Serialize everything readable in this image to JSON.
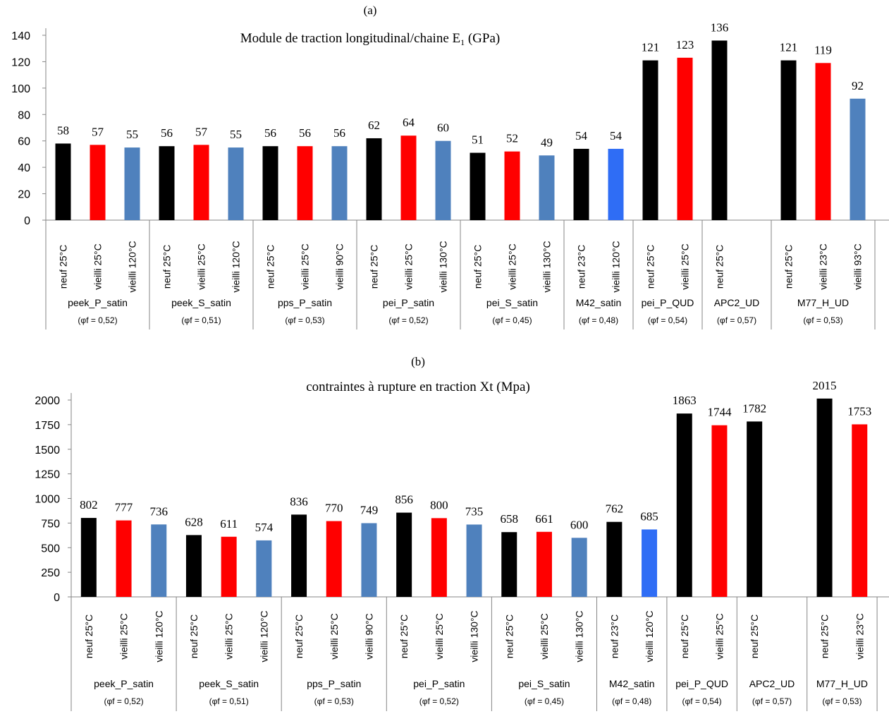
{
  "chart_data": [
    {
      "type": "bar",
      "panel_label": "(a)",
      "title": "Module de traction longitudinal/chaine E",
      "title_subscript": "1",
      "title_suffix": " (GPa)",
      "ylim": [
        0,
        140
      ],
      "yticks": [
        "0",
        "20",
        "40",
        "60",
        "80",
        "100",
        "120",
        "140"
      ],
      "groups": [
        {
          "name": "peek_P_satin",
          "sub": "(φf = 0,52)",
          "bars": [
            {
              "label": "neuf 25°C",
              "value": 58,
              "color": "#000000"
            },
            {
              "label": "vieilli 25°C",
              "value": 57,
              "color": "#ff0000"
            },
            {
              "label": "vieilli 120°C",
              "value": 55,
              "color": "#4f81bd"
            }
          ]
        },
        {
          "name": "peek_S_satin",
          "sub": "(φf = 0,51)",
          "bars": [
            {
              "label": "neuf 25°C",
              "value": 56,
              "color": "#000000"
            },
            {
              "label": "vieilli 25°C",
              "value": 57,
              "color": "#ff0000"
            },
            {
              "label": "vieilli 120°C",
              "value": 55,
              "color": "#4f81bd"
            }
          ]
        },
        {
          "name": "pps_P_satin",
          "sub": "(φf = 0,53)",
          "bars": [
            {
              "label": "neuf 25°C",
              "value": 56,
              "color": "#000000"
            },
            {
              "label": "vieilli 25°C",
              "value": 56,
              "color": "#ff0000"
            },
            {
              "label": "vieilli 90°C",
              "value": 56,
              "color": "#4f81bd"
            }
          ]
        },
        {
          "name": "pei_P_satin",
          "sub": "(φf = 0,52)",
          "bars": [
            {
              "label": "neuf 25°C",
              "value": 62,
              "color": "#000000"
            },
            {
              "label": "vieilli 25°C",
              "value": 64,
              "color": "#ff0000"
            },
            {
              "label": "vieilli 130°C",
              "value": 60,
              "color": "#4f81bd"
            }
          ]
        },
        {
          "name": "pei_S_satin",
          "sub": "(φf = 0,45)",
          "bars": [
            {
              "label": "neuf 25°C",
              "value": 51,
              "color": "#000000"
            },
            {
              "label": "vieilli 25°C",
              "value": 52,
              "color": "#ff0000"
            },
            {
              "label": "vieilli 130°C",
              "value": 49,
              "color": "#4f81bd"
            }
          ]
        },
        {
          "name": "M42_satin",
          "sub": "(φf = 0,48)",
          "bars": [
            {
              "label": "neuf 23°C",
              "value": 54,
              "color": "#000000"
            },
            {
              "label": "vieilli 120°C",
              "value": 54,
              "color": "#2f6df5"
            }
          ]
        },
        {
          "name": "pei_P_QUD",
          "sub": "(φf = 0,54)",
          "bars": [
            {
              "label": "neuf 25°C",
              "value": 121,
              "color": "#000000"
            },
            {
              "label": "vieilli 25°C",
              "value": 123,
              "color": "#ff0000"
            }
          ]
        },
        {
          "name": "APC2_UD",
          "sub": "(φf = 0,57)",
          "slots": 2,
          "bars": [
            {
              "label": "neuf 25°C",
              "value": 136,
              "color": "#000000"
            }
          ]
        },
        {
          "name": "M77_H_UD",
          "sub": "(φf = 0,53)",
          "bars": [
            {
              "label": "neuf 25°C",
              "value": 121,
              "color": "#000000"
            },
            {
              "label": "vieilli 23°C",
              "value": 119,
              "color": "#ff0000"
            },
            {
              "label": "vieilli 93°C",
              "value": 92,
              "color": "#4f81bd"
            }
          ]
        }
      ]
    },
    {
      "type": "bar",
      "panel_label": "(b)",
      "title": "contraintes à rupture en traction Xt  (Mpa)",
      "ylim": [
        0,
        2000
      ],
      "yticks": [
        "0",
        "250",
        "500",
        "750",
        "1000",
        "1250",
        "1500",
        "1750",
        "2000"
      ],
      "groups": [
        {
          "name": "peek_P_satin",
          "sub": "(φf = 0,52)",
          "bars": [
            {
              "label": "neuf 25°C",
              "value": 802,
              "color": "#000000"
            },
            {
              "label": "vieilli 25°C",
              "value": 777,
              "color": "#ff0000"
            },
            {
              "label": "vieilli 120°C",
              "value": 736,
              "color": "#4f81bd"
            }
          ]
        },
        {
          "name": "peek_S_satin",
          "sub": "(φf = 0,51)",
          "bars": [
            {
              "label": "neuf 25°C",
              "value": 628,
              "color": "#000000"
            },
            {
              "label": "vieilli 25°C",
              "value": 611,
              "color": "#ff0000"
            },
            {
              "label": "vieilli 120°C",
              "value": 574,
              "color": "#4f81bd"
            }
          ]
        },
        {
          "name": "pps_P_satin",
          "sub": "(φf = 0,53)",
          "bars": [
            {
              "label": "neuf 25°C",
              "value": 836,
              "color": "#000000"
            },
            {
              "label": "vieilli 25°C",
              "value": 770,
              "color": "#ff0000"
            },
            {
              "label": "vieilli 90°C",
              "value": 749,
              "color": "#4f81bd"
            }
          ]
        },
        {
          "name": "pei_P_satin",
          "sub": "(φf = 0,52)",
          "bars": [
            {
              "label": "neuf 25°C",
              "value": 856,
              "color": "#000000"
            },
            {
              "label": "vieilli 25°C",
              "value": 800,
              "color": "#ff0000"
            },
            {
              "label": "vieilli 130°C",
              "value": 735,
              "color": "#4f81bd"
            }
          ]
        },
        {
          "name": "pei_S_satin",
          "sub": "(φf = 0,45)",
          "bars": [
            {
              "label": "neuf 25°C",
              "value": 658,
              "color": "#000000"
            },
            {
              "label": "vieilli 25°C",
              "value": 661,
              "color": "#ff0000"
            },
            {
              "label": "vieilli 130°C",
              "value": 600,
              "color": "#4f81bd"
            }
          ]
        },
        {
          "name": "M42_satin",
          "sub": "(φf = 0,48)",
          "bars": [
            {
              "label": "neuf 23°C",
              "value": 762,
              "color": "#000000"
            },
            {
              "label": "vieilli 120°C",
              "value": 685,
              "color": "#2f6df5"
            }
          ]
        },
        {
          "name": "pei_P_QUD",
          "sub": "(φf = 0,54)",
          "bars": [
            {
              "label": "neuf 25°C",
              "value": 1863,
              "color": "#000000"
            },
            {
              "label": "vieilli 25°C",
              "value": 1744,
              "color": "#ff0000"
            }
          ]
        },
        {
          "name": "APC2_UD",
          "sub": "(φf = 0,57)",
          "slots": 2,
          "bars": [
            {
              "label": "neuf 25°C",
              "value": 1782,
              "color": "#000000"
            }
          ]
        },
        {
          "name": "M77_H_UD",
          "sub": "(φf = 0,53)",
          "bars": [
            {
              "label": "neuf 25°C",
              "value": 2015,
              "color": "#000000"
            },
            {
              "label": "vieilli 23°C",
              "value": 1753,
              "color": "#ff0000"
            }
          ]
        }
      ]
    }
  ]
}
